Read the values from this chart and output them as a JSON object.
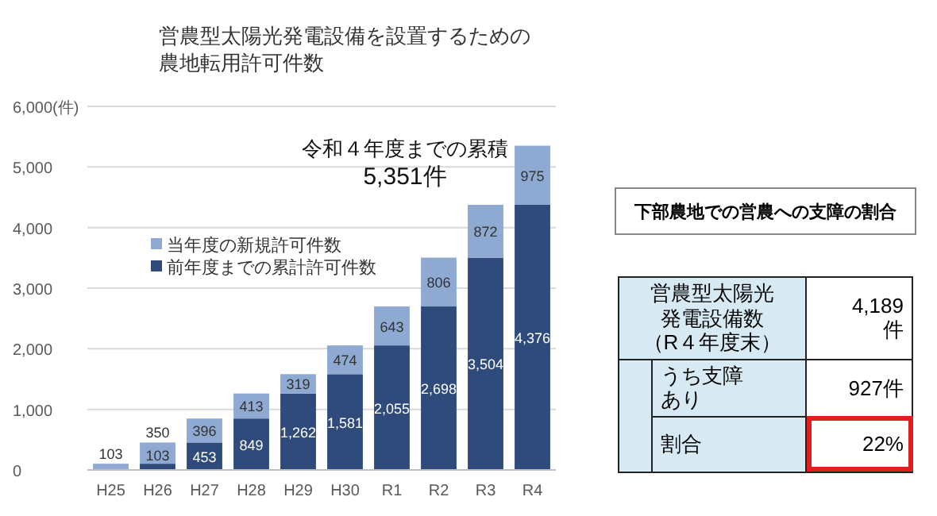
{
  "chart_data": [
    {
      "type": "bar",
      "title": "営農型太陽光発電設備を設置するための農地転用許可件数",
      "stacked": true,
      "categories": [
        "H25",
        "H26",
        "H27",
        "H28",
        "H29",
        "H30",
        "R1",
        "R2",
        "R3",
        "R4"
      ],
      "series": [
        {
          "name": "前年度までの累計許可件数",
          "color": "#2f4b7c",
          "values": [
            null,
            103,
            453,
            849,
            1262,
            1581,
            2055,
            2698,
            3504,
            4376
          ],
          "value_labels": [
            null,
            "103",
            "453",
            "849",
            "1,262",
            "1,581",
            "2,055",
            "2,698",
            "3,504",
            "4,376"
          ]
        },
        {
          "name": "当年度の新規許可件数",
          "color": "#8eaad3",
          "values": [
            103,
            350,
            396,
            413,
            319,
            474,
            643,
            806,
            872,
            975
          ],
          "value_labels": [
            "103",
            "350",
            "396",
            "413",
            "319",
            "474",
            "643",
            "806",
            "872",
            "975"
          ]
        }
      ],
      "ylim": [
        0,
        6000
      ],
      "yticks": [
        0,
        {
          "value": 1000,
          "label": "1,000"
        },
        {
          "value": 2000,
          "label": "2,000"
        },
        {
          "value": 3000,
          "label": "3,000"
        },
        {
          "value": 4000,
          "label": "4,000"
        },
        {
          "value": 5000,
          "label": "5,000"
        },
        {
          "value": 6000,
          "label": "6,000(件)"
        }
      ],
      "grid": "y",
      "legend": "left",
      "annotations": [
        "令和４年度までの累積",
        "5,351件"
      ]
    },
    {
      "type": "other",
      "title": "下部農地での営農への支障の割合",
      "annotations": [
        "営農型太陽光発電設備数（R４年度末）",
        "4,189件",
        "うち支障あり",
        "927件",
        "割合",
        "22%"
      ]
    }
  ]
}
